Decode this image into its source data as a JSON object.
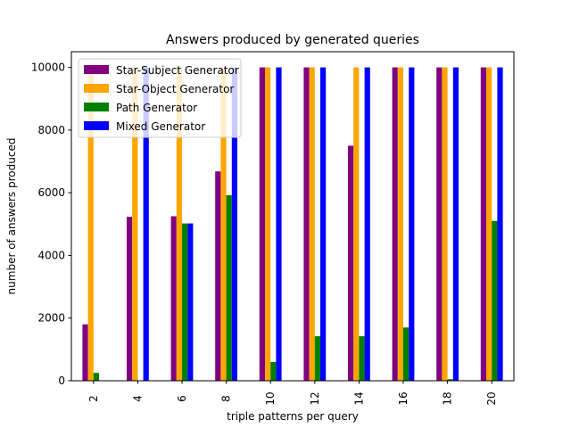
{
  "chart_data": {
    "type": "bar",
    "title": "Answers produced by generated queries",
    "xlabel": "triple patterns per query",
    "ylabel": "number of answers produced",
    "categories": [
      "2",
      "4",
      "6",
      "8",
      "10",
      "12",
      "14",
      "16",
      "18",
      "20"
    ],
    "ylim": [
      0,
      10500
    ],
    "yticks": [
      0,
      2000,
      4000,
      6000,
      8000,
      10000
    ],
    "grid": false,
    "legend_position": "top-left",
    "series": [
      {
        "name": "Star-Subject Generator",
        "color": "#800080",
        "values": [
          1800,
          5230,
          5250,
          6680,
          10000,
          10000,
          7500,
          10000,
          10000,
          10000
        ]
      },
      {
        "name": "Star-Object Generator",
        "color": "#ffa500",
        "values": [
          10000,
          10000,
          10000,
          10000,
          10000,
          10000,
          10000,
          10000,
          10000,
          10000
        ]
      },
      {
        "name": "Path Generator",
        "color": "#008000",
        "values": [
          250,
          0,
          5020,
          5920,
          600,
          1420,
          1420,
          1700,
          50,
          5100
        ]
      },
      {
        "name": "Mixed Generator",
        "color": "#0000ff",
        "values": [
          0,
          10000,
          5020,
          10000,
          10000,
          10000,
          10000,
          10000,
          10000,
          10000
        ]
      }
    ]
  }
}
